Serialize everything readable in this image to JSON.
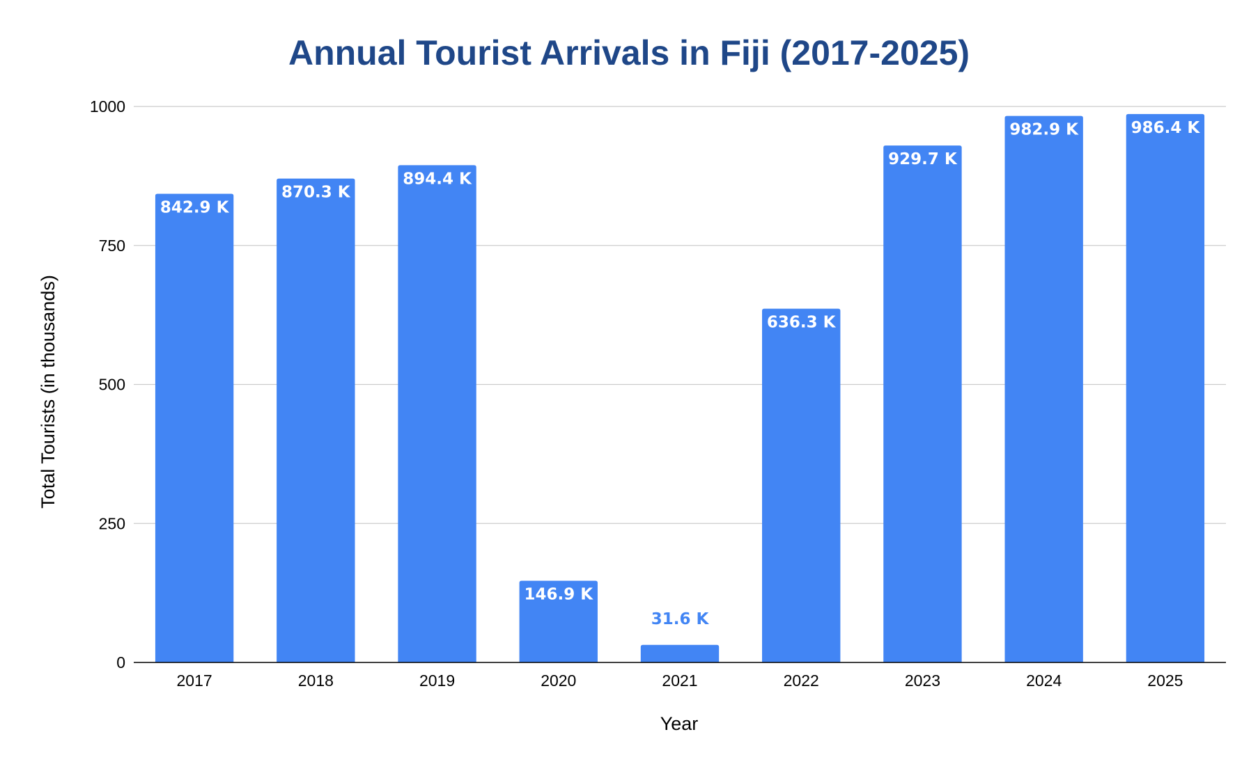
{
  "colors": {
    "bar": "#4285F4",
    "title": "#1F4788",
    "grid": "#CCCCCC",
    "axis": "#000000",
    "label_inside": "#FFFFFF",
    "label_outside": "#4285F4"
  },
  "chart_data": {
    "type": "bar",
    "title": "Annual Tourist Arrivals in Fiji (2017-2025)",
    "xlabel": "Year",
    "ylabel": "Total Tourists (in thousands)",
    "categories": [
      "2017",
      "2018",
      "2019",
      "2020",
      "2021",
      "2022",
      "2023",
      "2024",
      "2025"
    ],
    "values": [
      842.9,
      870.3,
      894.4,
      146.9,
      31.6,
      636.3,
      929.7,
      982.9,
      986.4
    ],
    "data_labels": [
      "842.9 K",
      "870.3 K",
      "894.4 K",
      "146.9 K",
      "31.6 K",
      "636.3 K",
      "929.7 K",
      "982.9 K",
      "986.4 K"
    ],
    "ylim": [
      0,
      1000
    ],
    "yticks": [
      0,
      250,
      500,
      750,
      1000
    ],
    "ytick_labels": [
      "0",
      "250",
      "500",
      "750",
      "1000"
    ],
    "grid": true,
    "legend": "none"
  }
}
